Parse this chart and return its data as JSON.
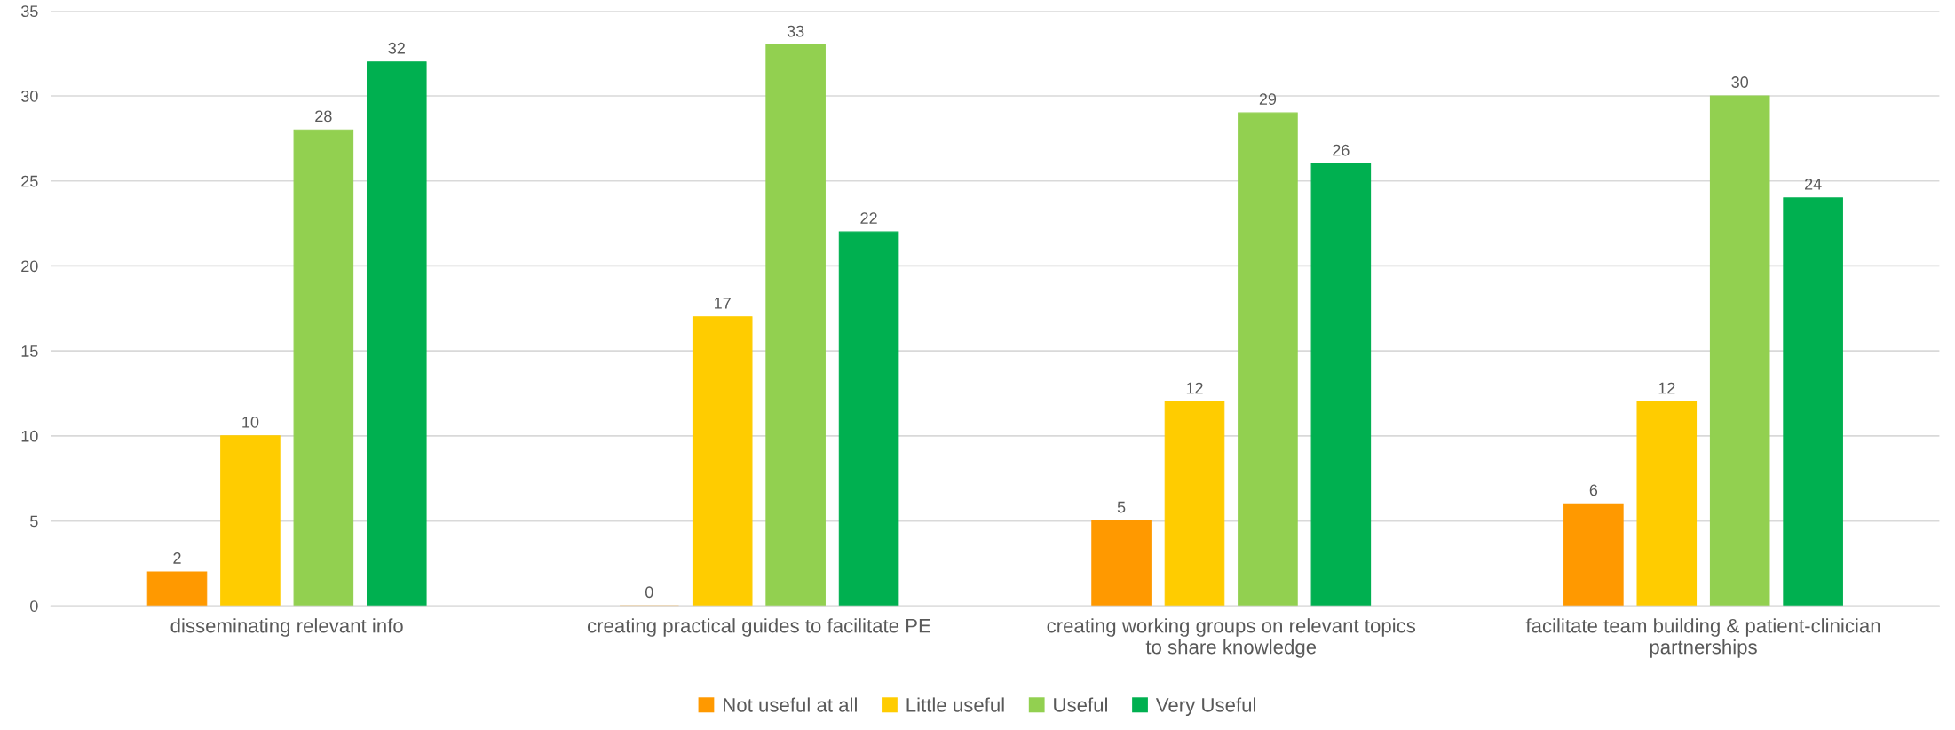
{
  "chart_data": {
    "type": "bar",
    "categories": [
      "disseminating relevant info",
      "creating practical guides to facilitate PE",
      "creating working groups on relevant topics to share knowledge",
      "facilitate team building & patient-clinician partnerships"
    ],
    "series": [
      {
        "name": "Not useful at all",
        "color": "#ff9900",
        "values": [
          2,
          0,
          5,
          6
        ]
      },
      {
        "name": "Little useful",
        "color": "#ffcc00",
        "values": [
          10,
          17,
          12,
          12
        ]
      },
      {
        "name": "Useful",
        "color": "#92d050",
        "values": [
          28,
          33,
          29,
          30
        ]
      },
      {
        "name": "Very Useful",
        "color": "#00b050",
        "values": [
          32,
          22,
          26,
          24
        ]
      }
    ],
    "ylim": [
      0,
      35
    ],
    "yticks": [
      0,
      5,
      10,
      15,
      20,
      25,
      30,
      35
    ],
    "grid": "y",
    "legend": "bottom",
    "data_labels": true
  }
}
